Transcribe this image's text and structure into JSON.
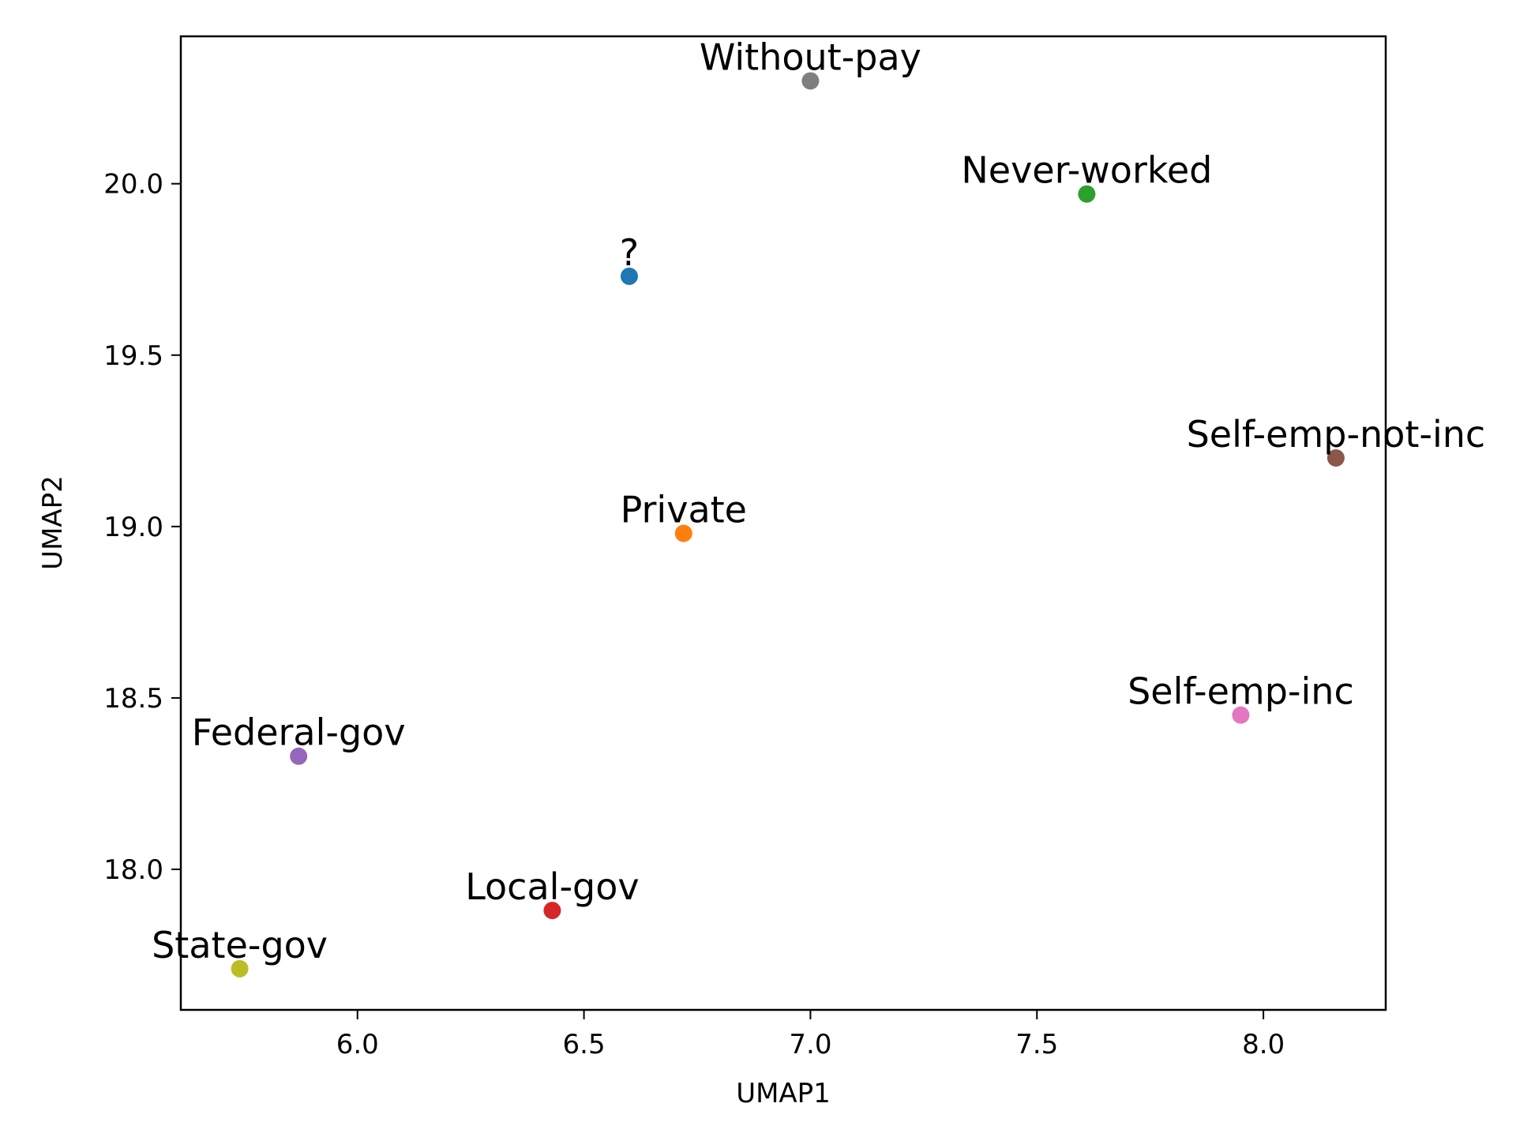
{
  "chart_data": {
    "type": "scatter",
    "title": "",
    "xlabel": "UMAP1",
    "ylabel": "UMAP2",
    "xlim": [
      5.61,
      8.27
    ],
    "ylim": [
      17.59,
      20.43
    ],
    "xticks": [
      6.0,
      6.5,
      7.0,
      7.5,
      8.0
    ],
    "xtick_labels": [
      "6.0",
      "6.5",
      "7.0",
      "7.5",
      "8.0"
    ],
    "yticks": [
      18.0,
      18.5,
      19.0,
      19.5,
      20.0
    ],
    "ytick_labels": [
      "18.0",
      "18.5",
      "19.0",
      "19.5",
      "20.0"
    ],
    "grid": false,
    "points": [
      {
        "label": "?",
        "x": 6.6,
        "y": 19.73,
        "color": "#1f77b4"
      },
      {
        "label": "Private",
        "x": 6.72,
        "y": 18.98,
        "color": "#ff7f0e"
      },
      {
        "label": "Never-worked",
        "x": 7.61,
        "y": 19.97,
        "color": "#2ca02c"
      },
      {
        "label": "Local-gov",
        "x": 6.43,
        "y": 17.88,
        "color": "#d62728"
      },
      {
        "label": "Federal-gov",
        "x": 5.87,
        "y": 18.33,
        "color": "#9467bd"
      },
      {
        "label": "Self-emp-not-inc",
        "x": 8.16,
        "y": 19.2,
        "color": "#8c564b"
      },
      {
        "label": "Self-emp-inc",
        "x": 7.95,
        "y": 18.45,
        "color": "#e377c2"
      },
      {
        "label": "Without-pay",
        "x": 7.0,
        "y": 20.3,
        "color": "#7f7f7f"
      },
      {
        "label": "State-gov",
        "x": 5.74,
        "y": 17.71,
        "color": "#bcbd22"
      }
    ]
  }
}
